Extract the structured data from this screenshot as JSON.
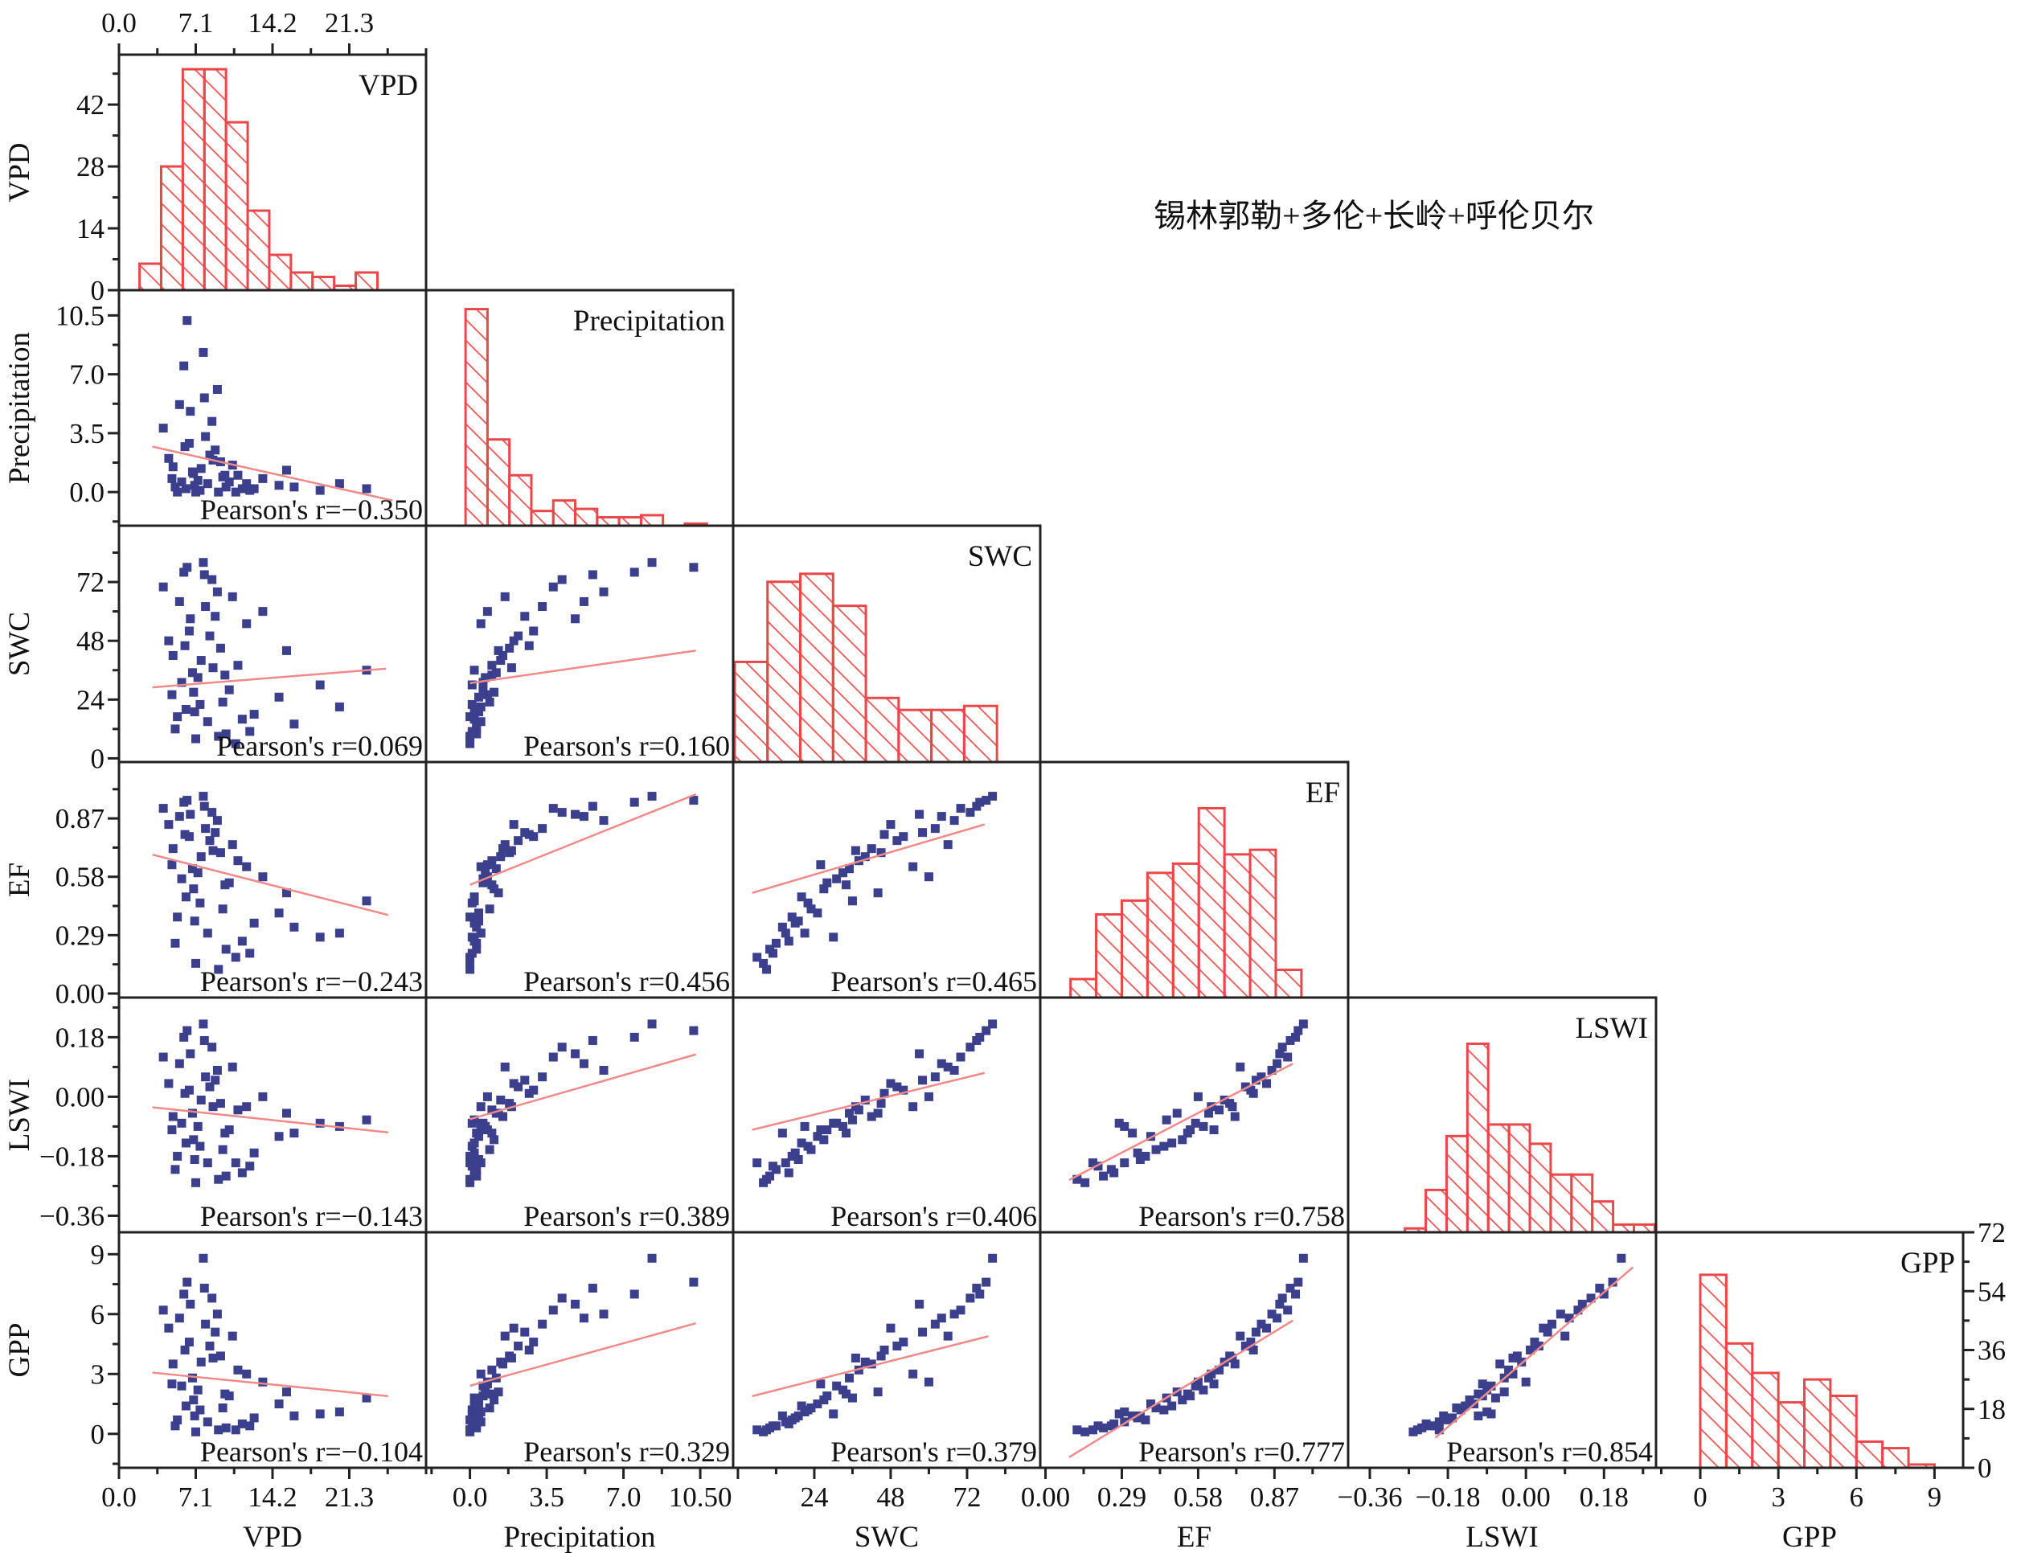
{
  "chart_data": {
    "type": "scatter",
    "title": "锡林郭勒+多伦+长岭+呼伦贝尔",
    "grid": false,
    "colors": {
      "points": "#3b3f8c",
      "fit_line": "#f08a8a",
      "histogram": "#e8484a",
      "axes": "#222222"
    },
    "variables": [
      {
        "name": "VPD",
        "range": [
          0,
          28.4
        ],
        "ticks": [
          0,
          7.1,
          14.2,
          21.3
        ],
        "tick_labels_bottom": [
          "0.0",
          "7.1",
          "14.2",
          "21.3"
        ],
        "tick_labels_top": [
          "0.0",
          "7.1",
          "14.2",
          "21.3"
        ],
        "tick_labels_left": []
      },
      {
        "name": "Precipitation",
        "range": [
          -2.0,
          12.0
        ],
        "ticks": [
          0,
          3.5,
          7.0,
          10.5
        ],
        "tick_labels_bottom": [
          "0.0",
          "3.5",
          "7.0",
          "10.50"
        ],
        "tick_labels_left": [
          "0.0",
          "3.5",
          "7.0",
          "10.5"
        ]
      },
      {
        "name": "SWC",
        "range": [
          -1.5,
          95
        ],
        "ticks": [
          0,
          24,
          48,
          72
        ],
        "tick_labels_bottom": [
          "",
          "24",
          "48",
          "72"
        ],
        "tick_labels_left": [
          "0",
          "24",
          "48",
          "72"
        ]
      },
      {
        "name": "EF",
        "range": [
          -0.02,
          1.15
        ],
        "ticks": [
          0,
          0.29,
          0.58,
          0.87
        ],
        "tick_labels_bottom": [
          "0.00",
          "0.29",
          "0.58",
          "0.87"
        ],
        "tick_labels_left": [
          "0.00",
          "0.29",
          "0.58",
          "0.87"
        ]
      },
      {
        "name": "LSWI",
        "range": [
          -0.41,
          0.3
        ],
        "ticks": [
          -0.36,
          -0.18,
          0,
          0.18
        ],
        "tick_labels_bottom": [
          "−0.36",
          "−0.18",
          "0.00",
          "0.18"
        ],
        "tick_labels_left": [
          "−0.36",
          "−0.18",
          "0.00",
          "0.18"
        ]
      },
      {
        "name": "GPP",
        "range": [
          -1.7,
          10.1
        ],
        "ticks": [
          0,
          3,
          6,
          9
        ],
        "tick_labels_bottom": [
          "0",
          "3",
          "6",
          "9"
        ],
        "tick_labels_left": [
          "0",
          "3",
          "6",
          "9"
        ]
      }
    ],
    "histograms": [
      {
        "variable": "VPD",
        "bin_start": 1.9,
        "bin_width": 2.0,
        "counts": [
          6,
          28,
          50,
          50,
          38,
          18,
          8,
          4,
          3,
          1,
          4
        ],
        "ylim": [
          0,
          53.3
        ],
        "yticks": [
          0,
          14,
          28,
          42
        ],
        "ytick_labels": [
          "0",
          "14",
          "28",
          "42"
        ],
        "axis": "left"
      },
      {
        "variable": "Precipitation",
        "bin_start": -0.2,
        "bin_width": 1.0,
        "counts": [
          103,
          41,
          24,
          7,
          12,
          8,
          4,
          4,
          5,
          0,
          1
        ],
        "ylim": [
          0,
          112
        ]
      },
      {
        "variable": "SWC",
        "bin_start": -1.0,
        "bin_width": 10.3,
        "counts": [
          25,
          45,
          47,
          39,
          16,
          13,
          13,
          14
        ],
        "ylim": [
          0,
          59
        ]
      },
      {
        "variable": "EF",
        "bin_start": 0.095,
        "bin_width": 0.0975,
        "counts": [
          4,
          18,
          21,
          27,
          29,
          41,
          31,
          32,
          6
        ],
        "ylim": [
          0,
          51
        ]
      },
      {
        "variable": "LSWI",
        "bin_start": -0.279,
        "bin_width": 0.048,
        "counts": [
          1,
          11,
          25,
          49,
          28,
          28,
          23,
          15,
          15,
          8,
          2,
          2
        ],
        "ylim": [
          0,
          61
        ]
      },
      {
        "variable": "GPP",
        "bin_start": 0,
        "bin_width": 1,
        "counts": [
          59,
          38,
          29,
          20,
          27,
          22,
          8,
          6,
          1
        ],
        "ylim": [
          0,
          72
        ],
        "yticks": [
          0,
          18,
          36,
          54,
          72
        ],
        "ytick_labels": [
          "0",
          "18",
          "36",
          "54",
          "72"
        ],
        "axis": "right"
      }
    ],
    "correlations": [
      {
        "x": "VPD",
        "y": "Precipitation",
        "label": "Pearson's r=−0.350",
        "fit_x": [
          3.1,
          25.3
        ],
        "fit_y": [
          2.7,
          -0.5
        ]
      },
      {
        "x": "VPD",
        "y": "SWC",
        "label": "Pearson's r=0.069",
        "fit_x": [
          3.1,
          24.7
        ],
        "fit_y": [
          29,
          36.6
        ]
      },
      {
        "x": "Precipitation",
        "y": "SWC",
        "label": "Pearson's r=0.160",
        "fit_x": [
          0,
          10.3
        ],
        "fit_y": [
          30.7,
          44
        ]
      },
      {
        "x": "VPD",
        "y": "EF",
        "label": "Pearson's r=−0.243",
        "fit_x": [
          3.1,
          24.9
        ],
        "fit_y": [
          0.69,
          0.39
        ]
      },
      {
        "x": "Precipitation",
        "y": "EF",
        "label": "Pearson's r=0.456",
        "fit_x": [
          0,
          10.3
        ],
        "fit_y": [
          0.54,
          0.99
        ]
      },
      {
        "x": "SWC",
        "y": "EF",
        "label": "Pearson's r=0.465",
        "fit_x": [
          4.5,
          77.5
        ],
        "fit_y": [
          0.5,
          0.84
        ]
      },
      {
        "x": "VPD",
        "y": "LSWI",
        "label": "Pearson's r=−0.143",
        "fit_x": [
          3.1,
          24.9
        ],
        "fit_y": [
          -0.032,
          -0.108
        ]
      },
      {
        "x": "Precipitation",
        "y": "LSWI",
        "label": "Pearson's r=0.389",
        "fit_x": [
          0,
          10.3
        ],
        "fit_y": [
          -0.068,
          0.128
        ]
      },
      {
        "x": "SWC",
        "y": "LSWI",
        "label": "Pearson's r=0.406",
        "fit_x": [
          4.5,
          77.5
        ],
        "fit_y": [
          -0.1,
          0.072
        ]
      },
      {
        "x": "EF",
        "y": "LSWI",
        "label": "Pearson's  r=0.758",
        "fit_x": [
          0.09,
          0.94
        ],
        "fit_y": [
          -0.252,
          0.1
        ]
      },
      {
        "x": "VPD",
        "y": "GPP",
        "label": "Pearson's r=−0.104",
        "fit_x": [
          3.1,
          24.9
        ],
        "fit_y": [
          3.07,
          1.89
        ]
      },
      {
        "x": "Precipitation",
        "y": "GPP",
        "label": "Pearson's r=0.329",
        "fit_x": [
          0,
          10.3
        ],
        "fit_y": [
          2.41,
          5.54
        ]
      },
      {
        "x": "SWC",
        "y": "GPP",
        "label": "Pearson's r=0.379",
        "fit_x": [
          4.5,
          78.7
        ],
        "fit_y": [
          1.89,
          4.89
        ]
      },
      {
        "x": "EF",
        "y": "GPP",
        "label": "Pearson's r=0.777",
        "fit_x": [
          0.09,
          0.94
        ],
        "fit_y": [
          -1.17,
          5.68
        ]
      },
      {
        "x": "LSWI",
        "y": "GPP",
        "label": "Pearson's r=0.854",
        "fit_x": [
          -0.209,
          0.247
        ],
        "fit_y": [
          -0.2,
          8.35
        ]
      }
    ],
    "observation_columns": [
      "VPD",
      "Precipitation",
      "SWC",
      "EF",
      "LSWI",
      "GPP"
    ],
    "observations": [
      [
        5.2,
        0.3,
        12,
        0.25,
        -0.22,
        0.4
      ],
      [
        6.8,
        1.2,
        35,
        0.62,
        -0.05,
        2.8
      ],
      [
        7.5,
        0.1,
        22,
        0.45,
        -0.15,
        1.2
      ],
      [
        8.9,
        2.5,
        58,
        0.8,
        0.05,
        5.1
      ],
      [
        10.2,
        0.6,
        28,
        0.55,
        -0.1,
        1.9
      ],
      [
        4.1,
        3.8,
        70,
        0.92,
        0.12,
        6.2
      ],
      [
        12.5,
        0.2,
        18,
        0.35,
        -0.17,
        0.8
      ],
      [
        6.0,
        7.5,
        76,
        0.95,
        0.18,
        7.0
      ],
      [
        9.4,
        1.8,
        45,
        0.7,
        -0.02,
        3.9
      ],
      [
        7.1,
        0.0,
        8,
        0.15,
        -0.26,
        0.1
      ],
      [
        14.8,
        0.4,
        25,
        0.4,
        -0.12,
        1.5
      ],
      [
        5.6,
        5.2,
        64,
        0.88,
        0.1,
        5.8
      ],
      [
        11.0,
        1.0,
        38,
        0.66,
        -0.04,
        3.2
      ],
      [
        8.2,
        0.5,
        15,
        0.3,
        -0.2,
        0.6
      ],
      [
        6.5,
        2.9,
        52,
        0.78,
        0.02,
        4.6
      ],
      [
        18.6,
        0.1,
        30,
        0.28,
        -0.08,
        1.0
      ],
      [
        7.8,
        8.3,
        80,
        0.98,
        0.22,
        8.8
      ],
      [
        9.9,
        0.3,
        10,
        0.22,
        -0.24,
        0.3
      ],
      [
        5.0,
        1.5,
        42,
        0.72,
        -0.06,
        3.5
      ],
      [
        13.3,
        0.8,
        60,
        0.58,
        0.0,
        2.6
      ],
      [
        6.2,
        0.2,
        20,
        0.48,
        -0.14,
        1.4
      ],
      [
        8.6,
        4.2,
        73,
        0.9,
        0.15,
        6.8
      ],
      [
        10.8,
        0.0,
        6,
        0.18,
        -0.2,
        0.2
      ],
      [
        4.6,
        2.0,
        48,
        0.84,
        0.04,
        5.3
      ],
      [
        7.3,
        0.7,
        33,
        0.6,
        -0.09,
        2.2
      ],
      [
        16.2,
        0.3,
        14,
        0.33,
        -0.11,
        0.9
      ],
      [
        9.1,
        6.1,
        68,
        0.86,
        0.08,
        6.0
      ],
      [
        6.9,
        1.1,
        27,
        0.52,
        -0.13,
        1.7
      ],
      [
        11.8,
        0.5,
        55,
        0.63,
        -0.03,
        3.0
      ],
      [
        5.4,
        0.0,
        17,
        0.38,
        -0.18,
        0.7
      ],
      [
        8.0,
        3.3,
        62,
        0.82,
        0.06,
        5.5
      ],
      [
        22.9,
        0.2,
        36,
        0.46,
        -0.07,
        1.8
      ],
      [
        7.6,
        1.4,
        40,
        0.68,
        -0.01,
        3.6
      ],
      [
        9.6,
        0.9,
        23,
        0.42,
        -0.16,
        1.3
      ],
      [
        6.3,
        10.2,
        78,
        0.96,
        0.2,
        7.6
      ],
      [
        12.1,
        0.1,
        11,
        0.2,
        -0.21,
        0.4
      ],
      [
        8.4,
        2.2,
        50,
        0.76,
        0.03,
        4.4
      ],
      [
        5.8,
        0.6,
        31,
        0.57,
        -0.08,
        2.4
      ],
      [
        10.5,
        1.6,
        66,
        0.74,
        0.09,
        4.9
      ],
      [
        7.0,
        0.4,
        19,
        0.36,
        -0.19,
        0.9
      ],
      [
        15.5,
        1.3,
        44,
        0.5,
        -0.05,
        2.1
      ],
      [
        6.6,
        4.8,
        57,
        0.89,
        0.13,
        6.5
      ],
      [
        9.2,
        0.0,
        9,
        0.12,
        -0.25,
        0.2
      ],
      [
        8.7,
        1.9,
        37,
        0.71,
        -0.03,
        3.8
      ],
      [
        4.9,
        0.8,
        26,
        0.64,
        -0.1,
        2.5
      ],
      [
        20.4,
        0.5,
        21,
        0.3,
        -0.09,
        1.1
      ],
      [
        7.9,
        5.6,
        75,
        0.93,
        0.17,
        7.3
      ],
      [
        11.4,
        0.2,
        16,
        0.26,
        -0.23,
        0.5
      ],
      [
        6.1,
        2.7,
        46,
        0.79,
        0.01,
        4.2
      ],
      [
        9.8,
        1.0,
        34,
        0.54,
        -0.11,
        2.0
      ]
    ]
  }
}
